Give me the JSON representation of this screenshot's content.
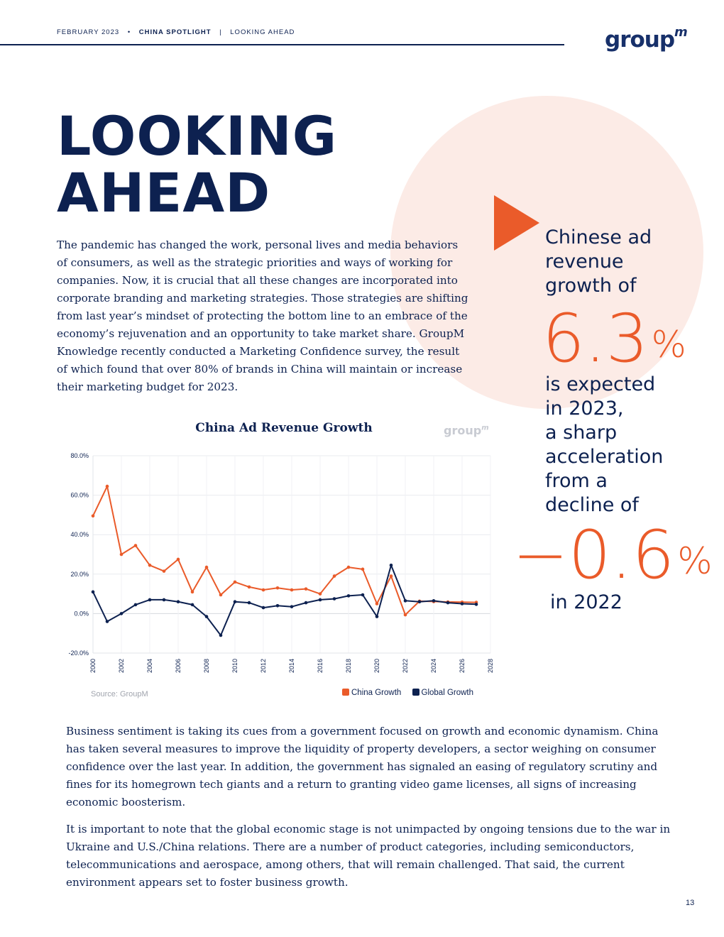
{
  "header": {
    "date": "FEBRUARY 2023",
    "bullet": "•",
    "section": "CHINA SPOTLIGHT",
    "divider": "|",
    "page_topic": "LOOKING AHEAD"
  },
  "logo": {
    "text": "group",
    "superscript": "m"
  },
  "title": {
    "line1": "LOOKING",
    "line2": "AHEAD"
  },
  "intro": "The pandemic has changed the work, personal lives and media behaviors of consumers, as well as the strategic priorities and ways of working for companies. Now, it is crucial that all these changes are incorporated into corporate branding and marketing strategies. Those strategies are shifting from last year’s mindset of protecting the bottom line to an embrace of the economy’s rejuvenation and an opportunity to take market share. GroupM Knowledge recently conducted a Marketing Confidence survey, the result of which found that over 80% of brands in China will maintain or increase their marketing budget for 2023.",
  "callout": {
    "line1": "Chinese ad",
    "line2": "revenue",
    "line3": "growth of",
    "value1": "6.3",
    "pct": "%",
    "line4": "is expected",
    "line5": "in 2023,",
    "line6": "a sharp",
    "line7": "acceleration",
    "line8": "from a",
    "line9": "decline of",
    "value2": "−0.6",
    "line10": "in 2022"
  },
  "colors": {
    "navy": "#0d2150",
    "orange": "#ea5b2a",
    "blush": "#fcebe6"
  },
  "chart_data": {
    "type": "line",
    "title": "China Ad Revenue Growth",
    "watermark": "group",
    "watermark_sup": "m",
    "source": "Source: GroupM",
    "legend_position": "bottom-right",
    "grid": true,
    "x": [
      2000,
      2001,
      2002,
      2003,
      2004,
      2005,
      2006,
      2007,
      2008,
      2009,
      2010,
      2011,
      2012,
      2013,
      2014,
      2015,
      2016,
      2017,
      2018,
      2019,
      2020,
      2021,
      2022,
      2023,
      2024,
      2025,
      2026,
      2027
    ],
    "xlim": [
      2000,
      2028
    ],
    "x_ticks": [
      "2000",
      "2002",
      "2004",
      "2006",
      "2008",
      "2010",
      "2012",
      "2014",
      "2016",
      "2018",
      "2020",
      "2022",
      "2024",
      "2026",
      "2028"
    ],
    "ylim": [
      -20,
      80
    ],
    "y_ticks": [
      "80.0%",
      "60.0%",
      "40.0%",
      "20.0%",
      "0.0%",
      "-20.0%"
    ],
    "series": [
      {
        "name": "China Growth",
        "color": "#ea5b2a",
        "values": [
          49.5,
          64.5,
          30,
          34.5,
          24.5,
          21.5,
          27.5,
          11,
          23.5,
          9.5,
          16,
          13.5,
          12,
          13,
          12,
          12.5,
          10,
          19,
          23.5,
          22.5,
          5,
          19,
          -0.6,
          6.3,
          6.1,
          5.9,
          5.8,
          5.7
        ]
      },
      {
        "name": "Global Growth",
        "color": "#0d2150",
        "values": [
          11,
          -4,
          0,
          4.5,
          7,
          7,
          6,
          4.5,
          -1.5,
          -11,
          6,
          5.5,
          3,
          4,
          3.5,
          5.5,
          7,
          7.5,
          9,
          9.5,
          -1.5,
          24.5,
          6.5,
          6,
          6.5,
          5.5,
          5,
          4.7
        ]
      }
    ]
  },
  "body": {
    "p1": "Business sentiment is taking its cues from a government focused on growth and economic dynamism. China has taken several measures to improve the liquidity of property developers, a sector weighing on consumer confidence over the last year. In addition, the government has signaled an easing of regulatory scrutiny and fines for its homegrown tech giants and a return to granting video game licenses, all signs of increasing economic boosterism.",
    "p2": "It is important to note that the global economic stage is not unimpacted by ongoing tensions due to the war in Ukraine and U.S./China relations. There are a number of product categories, including semiconductors, telecommunications and aerospace, among others, that will remain challenged. That said, the current environment appears set to foster business growth."
  },
  "page_number": "13"
}
